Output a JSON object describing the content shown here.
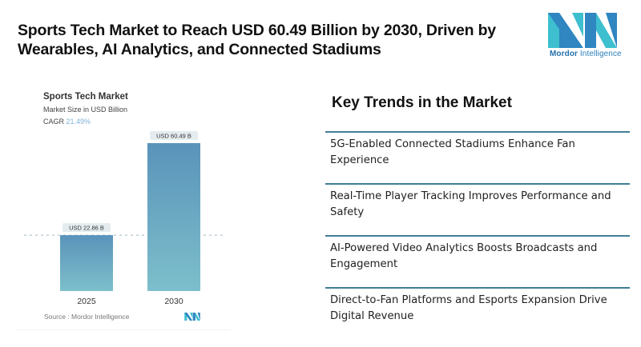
{
  "headline": "Sports Tech Market to Reach USD 60.49 Billion by 2030, Driven by Wearables, AI Analytics, and Connected Stadiums",
  "brand": {
    "name_bold": "Mordor",
    "name_rest": " Intelligence",
    "logo_icon": "mordor-intelligence-logo",
    "colors": {
      "dark": "#2f86c0",
      "light": "#3dbfcf"
    }
  },
  "chart_card": {
    "title": "Sports Tech Market",
    "subtitle": "Market Size in USD Billion",
    "cagr_label": "CAGR",
    "cagr_value": "21.49%",
    "source": "Source :  Mordor Intelligence"
  },
  "chart_data": {
    "type": "bar",
    "title": "Sports Tech Market",
    "subtitle": "Market Size in USD Billion",
    "categories": [
      "2025",
      "2030"
    ],
    "values": [
      22.86,
      60.49
    ],
    "data_labels": [
      "USD 22.86 B",
      "USD 60.49 B"
    ],
    "xlabel": "",
    "ylabel": "Market Size in USD Billion",
    "ylim": [
      0,
      60.49
    ],
    "grid": false,
    "reference_line": {
      "value": 22.86,
      "style": "dashed"
    },
    "colors": {
      "bar_top": "#5a93ba",
      "bar_bottom": "#7dbfcb",
      "label_bg": "#e4ecef",
      "ref_line": "#9fb6c4"
    }
  },
  "trends": {
    "title": "Key Trends in the Market",
    "items": [
      "5G-Enabled Connected Stadiums Enhance Fan Experience",
      "Real-Time Player Tracking Improves Performance and Safety",
      "AI-Powered Video Analytics Boosts Broadcasts and Engagement",
      "Direct-to-Fan Platforms and Esports Expansion Drive Digital Revenue"
    ]
  }
}
